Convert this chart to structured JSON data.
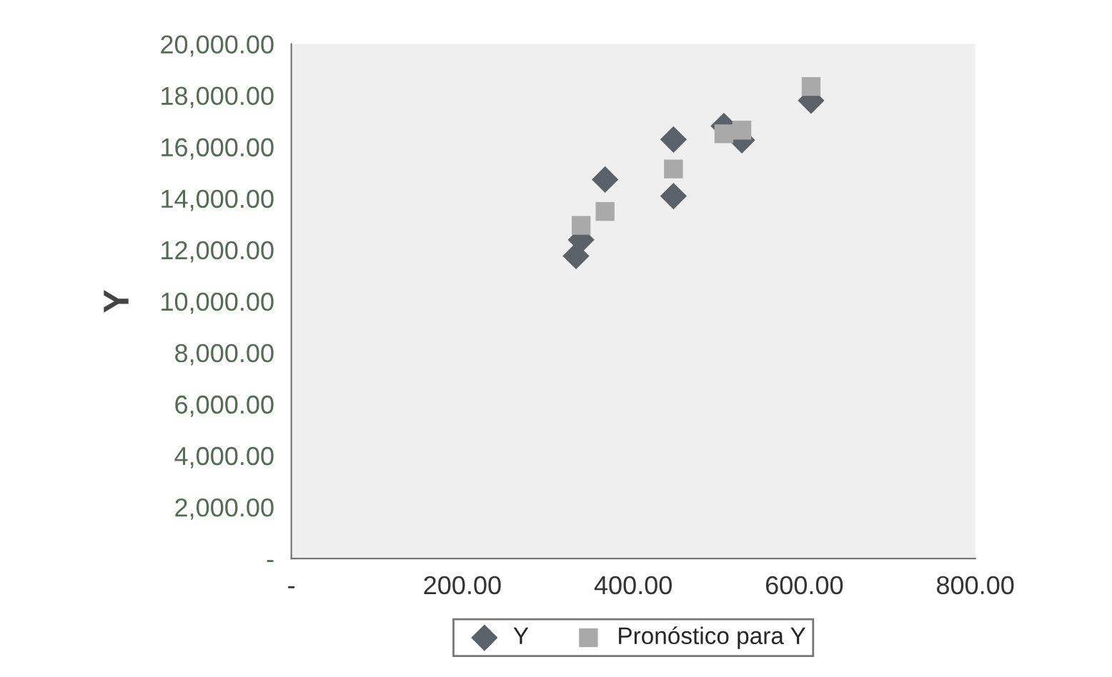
{
  "chart_data": {
    "type": "scatter",
    "ylabel": "Y",
    "x": [
      333,
      339,
      367,
      447,
      447,
      506,
      527,
      608
    ],
    "series": [
      {
        "name": "Y",
        "color": "#5a6168",
        "marker": "diamond",
        "values": [
          11760,
          12390,
          14730,
          16290,
          14090,
          16810,
          16260,
          17800
        ]
      },
      {
        "name": "Pronóstico para Y",
        "color": "#a9a9a9",
        "marker": "square",
        "values": [
          null,
          12950,
          13490,
          15140,
          null,
          16510,
          16650,
          18350
        ]
      }
    ],
    "xlim": [
      0,
      800
    ],
    "xticks": [
      {
        "value": 0,
        "label": "-"
      },
      {
        "value": 200,
        "label": "200.00"
      },
      {
        "value": 400,
        "label": "400.00"
      },
      {
        "value": 600,
        "label": "600.00"
      },
      {
        "value": 800,
        "label": "800.00"
      }
    ],
    "ylim": [
      0,
      20000
    ],
    "yticks": [
      {
        "value": 0,
        "label": "-"
      },
      {
        "value": 2000,
        "label": "2,000.00"
      },
      {
        "value": 4000,
        "label": "4,000.00"
      },
      {
        "value": 6000,
        "label": "6,000.00"
      },
      {
        "value": 8000,
        "label": "8,000.00"
      },
      {
        "value": 10000,
        "label": "10,000.00"
      },
      {
        "value": 12000,
        "label": "12,000.00"
      },
      {
        "value": 14000,
        "label": "14,000.00"
      },
      {
        "value": 16000,
        "label": "16,000.00"
      },
      {
        "value": 18000,
        "label": "18,000.00"
      },
      {
        "value": 20000,
        "label": "20,000.00"
      }
    ],
    "grid": false,
    "legend": "bottom"
  }
}
